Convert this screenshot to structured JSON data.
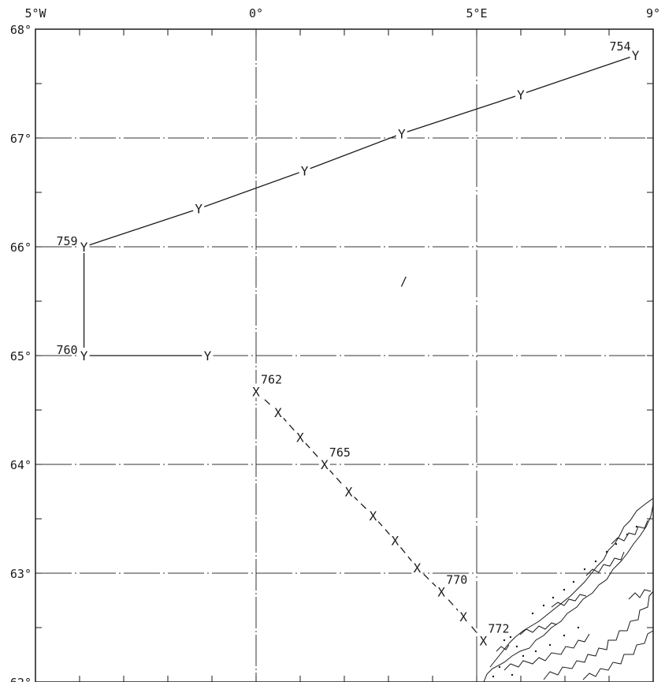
{
  "map": {
    "lon_range": [
      -5,
      9
    ],
    "lat_range": [
      62,
      68
    ],
    "lon_labels": [
      {
        "lon": -5,
        "text": "5°W"
      },
      {
        "lon": 0,
        "text": "0°"
      },
      {
        "lon": 5,
        "text": "5°E"
      },
      {
        "lon": 9,
        "text": "9°"
      }
    ],
    "lat_labels": [
      {
        "lat": 68,
        "text": "68°"
      },
      {
        "lat": 67,
        "text": "67°"
      },
      {
        "lat": 66,
        "text": "66°"
      },
      {
        "lat": 65,
        "text": "65°"
      },
      {
        "lat": 64,
        "text": "64°"
      },
      {
        "lat": 63,
        "text": "63°"
      },
      {
        "lat": 62,
        "text": "62°"
      }
    ],
    "grid_lons": [
      0,
      5
    ],
    "grid_lats": [
      63,
      64,
      65,
      66,
      67
    ],
    "track_y": {
      "symbol": "Y",
      "line": "solid",
      "stations": [
        {
          "lon": 8.6,
          "lat": 67.76,
          "label": "754"
        },
        {
          "lon": 6.0,
          "lat": 67.4
        },
        {
          "lon": 3.3,
          "lat": 67.04
        },
        {
          "lon": 1.1,
          "lat": 66.7
        },
        {
          "lon": -1.3,
          "lat": 66.35
        },
        {
          "lon": -3.9,
          "lat": 66.0,
          "label": "759"
        },
        {
          "lon": -3.9,
          "lat": 65.0,
          "label": "760"
        },
        {
          "lon": -1.1,
          "lat": 65.0
        }
      ]
    },
    "track_x": {
      "symbol": "X",
      "line": "dashed",
      "stations": [
        {
          "lon": 0.0,
          "lat": 64.67,
          "label": "762"
        },
        {
          "lon": 0.5,
          "lat": 64.48
        },
        {
          "lon": 1.0,
          "lat": 64.25
        },
        {
          "lon": 1.55,
          "lat": 64.0,
          "label": "765"
        },
        {
          "lon": 2.1,
          "lat": 63.75
        },
        {
          "lon": 2.65,
          "lat": 63.53
        },
        {
          "lon": 3.15,
          "lat": 63.3
        },
        {
          "lon": 3.65,
          "lat": 63.05
        },
        {
          "lon": 4.2,
          "lat": 62.83,
          "label": "770"
        },
        {
          "lon": 4.7,
          "lat": 62.6
        },
        {
          "lon": 5.15,
          "lat": 62.38,
          "label": "772"
        }
      ]
    },
    "tick_mark_text": "/"
  }
}
